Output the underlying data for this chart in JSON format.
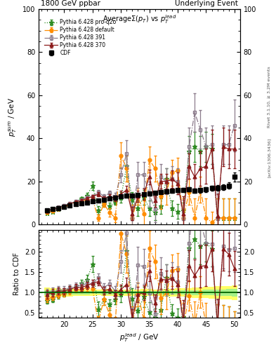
{
  "title_left": "1800 GeV ppbar",
  "title_right": "Underlying Event",
  "plot_title": "Average$\\Sigma(p_T)$ vs $p_T^{lead}$",
  "ylabel_main": "$p_T^{sum}$ / GeV",
  "ylabel_ratio": "Ratio to CDF",
  "xlabel": "$p_T^{l}ead$ / GeV",
  "right_label1": "Rivet 3.1.10, ≥ 3.2M events",
  "right_label2": "[arXiv:1306.3436]",
  "xlim": [
    15.5,
    51
  ],
  "ylim_main": [
    0,
    100
  ],
  "ylim_ratio": [
    0.38,
    2.55
  ],
  "cdf_x": [
    17,
    18,
    19,
    20,
    21,
    22,
    23,
    24,
    25,
    26,
    27,
    28,
    29,
    30,
    31,
    32,
    33,
    34,
    35,
    36,
    37,
    38,
    39,
    40,
    41,
    42,
    43,
    44,
    45,
    46,
    47,
    48,
    49,
    50
  ],
  "cdf_y": [
    6.5,
    7.0,
    7.5,
    8.2,
    8.8,
    9.3,
    9.8,
    10.2,
    10.6,
    11.0,
    11.5,
    12.0,
    12.5,
    13.0,
    13.3,
    13.5,
    13.7,
    14.0,
    14.3,
    14.7,
    15.0,
    15.3,
    15.5,
    15.8,
    16.0,
    16.2,
    15.5,
    15.8,
    16.2,
    16.8,
    17.0,
    17.3,
    18.0,
    22.0
  ],
  "cdf_yerr": [
    0.4,
    0.4,
    0.4,
    0.4,
    0.4,
    0.4,
    0.4,
    0.4,
    0.4,
    0.4,
    0.5,
    0.5,
    0.5,
    0.5,
    0.5,
    0.5,
    0.5,
    0.6,
    0.6,
    0.6,
    0.6,
    0.7,
    0.7,
    0.8,
    0.8,
    0.9,
    1.0,
    1.0,
    1.1,
    1.2,
    1.3,
    1.4,
    1.5,
    2.0
  ],
  "p370_x": [
    17,
    18,
    19,
    20,
    21,
    22,
    23,
    24,
    25,
    26,
    27,
    28,
    29,
    30,
    31,
    32,
    33,
    34,
    35,
    36,
    37,
    38,
    39,
    40,
    41,
    42,
    43,
    44,
    45,
    46,
    47,
    48,
    49,
    50
  ],
  "p370_y": [
    6.2,
    7.0,
    7.8,
    8.5,
    9.5,
    10.5,
    11.0,
    12.0,
    13.0,
    14.0,
    12.0,
    13.0,
    12.0,
    14.0,
    16.0,
    5.0,
    13.0,
    14.0,
    22.0,
    11.0,
    20.0,
    20.0,
    21.0,
    19.0,
    5.0,
    27.0,
    22.0,
    26.0,
    27.0,
    35.0,
    4.0,
    36.0,
    35.0,
    35.0
  ],
  "p370_yerr": [
    0.5,
    0.5,
    0.5,
    0.5,
    0.5,
    0.6,
    0.6,
    0.7,
    0.8,
    1.0,
    1.0,
    1.0,
    1.2,
    1.5,
    2.0,
    3.0,
    2.5,
    2.5,
    3.5,
    3.0,
    3.5,
    3.5,
    4.0,
    5.0,
    8.0,
    6.0,
    6.0,
    8.0,
    8.0,
    9.0,
    10.0,
    9.0,
    9.0,
    9.0
  ],
  "p391_x": [
    17,
    18,
    19,
    20,
    21,
    22,
    23,
    24,
    25,
    26,
    27,
    28,
    29,
    30,
    31,
    32,
    33,
    34,
    35,
    36,
    37,
    38,
    39,
    40,
    41,
    42,
    43,
    44,
    45,
    46,
    47,
    48,
    49,
    50
  ],
  "p391_y": [
    6.5,
    7.2,
    8.0,
    8.8,
    9.8,
    10.8,
    11.5,
    12.5,
    13.0,
    15.0,
    13.0,
    14.5,
    13.0,
    23.0,
    33.0,
    2.5,
    23.0,
    23.0,
    14.0,
    7.0,
    22.0,
    20.0,
    21.0,
    20.0,
    2.5,
    36.0,
    52.0,
    44.0,
    36.0,
    37.0,
    2.5,
    37.0,
    37.0,
    46.0
  ],
  "p391_yerr": [
    0.5,
    0.5,
    0.5,
    0.5,
    0.5,
    0.6,
    0.6,
    0.8,
    0.8,
    1.0,
    1.0,
    1.2,
    1.5,
    3.5,
    6.0,
    6.0,
    6.0,
    6.0,
    6.0,
    6.0,
    6.0,
    6.0,
    6.0,
    6.0,
    9.0,
    9.0,
    9.0,
    9.0,
    9.0,
    9.0,
    12.0,
    9.0,
    9.0,
    12.0
  ],
  "pdef_x": [
    17,
    18,
    19,
    20,
    21,
    22,
    23,
    24,
    25,
    26,
    27,
    28,
    29,
    30,
    31,
    32,
    33,
    34,
    35,
    36,
    37,
    38,
    39,
    40,
    41,
    42,
    43,
    44,
    45,
    46,
    47,
    48,
    49,
    50
  ],
  "pdef_y": [
    5.5,
    6.2,
    7.0,
    8.0,
    9.0,
    10.0,
    10.5,
    11.5,
    11.5,
    3.0,
    9.5,
    5.5,
    3.0,
    32.0,
    26.0,
    3.0,
    13.0,
    5.0,
    30.0,
    26.0,
    13.0,
    15.0,
    24.0,
    25.0,
    3.0,
    15.0,
    3.0,
    16.0,
    3.0,
    1.0,
    3.0,
    3.0,
    3.0,
    3.0
  ],
  "pdef_yerr": [
    0.4,
    0.4,
    0.4,
    0.5,
    0.5,
    0.5,
    0.5,
    0.7,
    0.8,
    1.5,
    1.5,
    2.0,
    2.0,
    6.0,
    6.0,
    6.0,
    4.0,
    6.0,
    6.0,
    6.0,
    6.0,
    6.0,
    6.0,
    6.0,
    9.0,
    6.0,
    9.0,
    6.0,
    9.0,
    5.0,
    9.0,
    9.0,
    9.0,
    9.0
  ],
  "pq2o_x": [
    17,
    18,
    19,
    20,
    21,
    22,
    23,
    24,
    25,
    26,
    27,
    28,
    29,
    30,
    31,
    32,
    33,
    34,
    35,
    36,
    37,
    38,
    39,
    40,
    41,
    42,
    43,
    44,
    45,
    46,
    47,
    48,
    49,
    50
  ],
  "pq2o_y": [
    5.2,
    5.8,
    7.0,
    8.0,
    9.5,
    10.5,
    12.0,
    13.5,
    18.0,
    6.5,
    9.5,
    8.5,
    10.5,
    12.5,
    27.0,
    11.5,
    7.5,
    12.5,
    7.5,
    5.5,
    8.5,
    21.0,
    7.5,
    6.0,
    6.5,
    34.0,
    36.0,
    34.0,
    36.0,
    35.0,
    3.0,
    3.0,
    3.0,
    3.0
  ],
  "pq2o_yerr": [
    0.4,
    0.4,
    0.5,
    0.5,
    0.5,
    0.5,
    0.7,
    1.0,
    2.0,
    2.0,
    1.5,
    1.5,
    1.5,
    2.5,
    5.0,
    3.5,
    3.5,
    3.5,
    3.5,
    3.5,
    3.5,
    5.0,
    3.5,
    3.5,
    3.5,
    7.0,
    7.0,
    7.0,
    7.0,
    7.0,
    9.0,
    9.0,
    9.0,
    9.0
  ],
  "color_cdf": "#000000",
  "color_370": "#8B1A1A",
  "color_391": "#8B7B8B",
  "color_def": "#FF8C00",
  "color_q2o": "#2E8B22",
  "xticks": [
    20,
    25,
    30,
    35,
    40,
    45,
    50
  ],
  "yticks_main": [
    0,
    20,
    40,
    60,
    80,
    100
  ],
  "yticks_ratio": [
    0.5,
    1.0,
    1.5,
    2.0
  ]
}
